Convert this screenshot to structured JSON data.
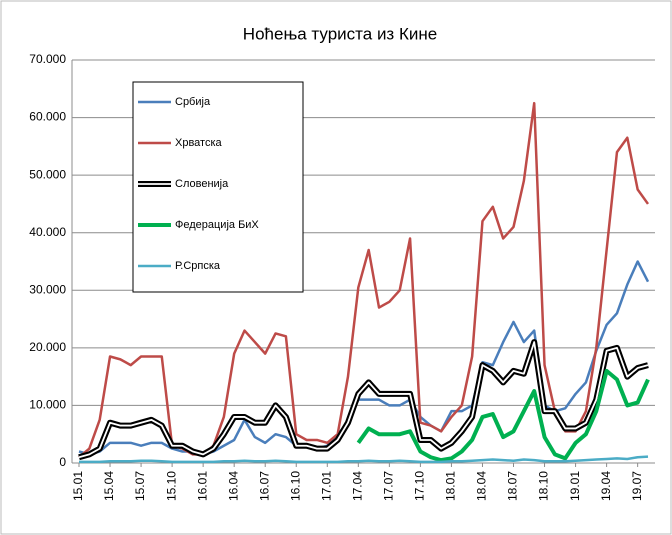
{
  "chart_data": {
    "type": "line",
    "title": "Ноћења туриста из Кине",
    "categories": [
      "15.01",
      null,
      null,
      "15.04",
      null,
      null,
      "15.07",
      null,
      null,
      "15.10",
      null,
      null,
      "16.01",
      null,
      null,
      "16.04",
      null,
      null,
      "16.07",
      null,
      null,
      "16.10",
      null,
      null,
      "17.01",
      null,
      null,
      "17.04",
      null,
      null,
      "17.07",
      null,
      null,
      "17.10",
      null,
      null,
      "18.01",
      null,
      null,
      "18.04",
      null,
      null,
      "18.07",
      null,
      null,
      "18.10",
      null,
      null,
      "19.01",
      null,
      null,
      "19.04",
      null,
      null,
      "19.07",
      null
    ],
    "series": [
      {
        "name": "Србија",
        "color": "#4a7ebb",
        "style": "single",
        "values": [
          2000,
          1500,
          2000,
          3500,
          3500,
          3500,
          3000,
          3500,
          3500,
          2500,
          2000,
          2000,
          1500,
          2000,
          3000,
          4000,
          7500,
          4500,
          3500,
          5000,
          4500,
          3000,
          3000,
          2500,
          3000,
          5000,
          7000,
          11000,
          11000,
          11000,
          10000,
          10000,
          11000,
          8000,
          6500,
          5500,
          9000,
          9000,
          10000,
          17500,
          17000,
          21000,
          24500,
          21000,
          23000,
          10000,
          9000,
          9500,
          12000,
          14000,
          19500,
          24000,
          26000,
          31000,
          35000,
          31500
        ]
      },
      {
        "name": "Хрватска",
        "color": "#be4b48",
        "style": "single",
        "values": [
          1000,
          2500,
          7500,
          18500,
          18000,
          17000,
          18500,
          18500,
          18500,
          3000,
          2500,
          1500,
          1500,
          3000,
          8000,
          19000,
          23000,
          21000,
          19000,
          22500,
          22000,
          5000,
          4000,
          4000,
          3500,
          5000,
          15000,
          30500,
          37000,
          27000,
          28000,
          30000,
          39000,
          7000,
          6500,
          5500,
          8000,
          10000,
          18500,
          42000,
          44500,
          39000,
          41000,
          49000,
          62500,
          17000,
          9000,
          5500,
          5500,
          9000,
          20000,
          37000,
          54000,
          56500,
          47500,
          45000
        ]
      },
      {
        "name": "Словенија",
        "color": "#000000",
        "style": "double",
        "values": [
          1000,
          1500,
          2500,
          7000,
          6500,
          6500,
          7000,
          7500,
          6500,
          3000,
          3000,
          2000,
          1500,
          2500,
          5000,
          8000,
          8000,
          7000,
          7000,
          10000,
          8000,
          3000,
          3000,
          2500,
          2500,
          4000,
          7000,
          12000,
          14000,
          12000,
          12000,
          12000,
          12000,
          4000,
          4000,
          2500,
          3500,
          5500,
          8000,
          17000,
          16000,
          14000,
          16000,
          15500,
          21000,
          9000,
          9000,
          6000,
          6000,
          7000,
          11000,
          19500,
          20000,
          15000,
          16500,
          17000
        ]
      },
      {
        "name": "Федерација БиХ",
        "color": "#00b050",
        "style": "thick",
        "values": [
          null,
          null,
          null,
          null,
          null,
          null,
          null,
          null,
          null,
          null,
          null,
          null,
          null,
          null,
          null,
          null,
          null,
          null,
          null,
          null,
          null,
          null,
          null,
          null,
          null,
          null,
          null,
          3500,
          6000,
          5000,
          5000,
          5000,
          5500,
          2000,
          1000,
          500,
          800,
          2000,
          4000,
          8000,
          8500,
          4500,
          5500,
          9000,
          12500,
          4500,
          1500,
          800,
          3500,
          5000,
          9000,
          16000,
          14500,
          10000,
          10500,
          14500
        ]
      },
      {
        "name": "Р.Српска",
        "color": "#4bacc6",
        "style": "single",
        "values": [
          200,
          200,
          200,
          300,
          300,
          300,
          400,
          400,
          300,
          200,
          200,
          200,
          200,
          200,
          300,
          300,
          400,
          300,
          300,
          400,
          300,
          200,
          200,
          200,
          200,
          200,
          300,
          300,
          400,
          300,
          300,
          400,
          300,
          200,
          200,
          200,
          300,
          300,
          400,
          500,
          600,
          500,
          400,
          600,
          500,
          300,
          300,
          300,
          400,
          500,
          600,
          700,
          800,
          700,
          1000,
          1100
        ]
      }
    ],
    "ylim": [
      0,
      70000
    ],
    "yticks": [
      0,
      {
        "value": 10000,
        "label": "10.000"
      },
      {
        "value": 20000,
        "label": "20.000"
      },
      {
        "value": 30000,
        "label": "30.000"
      },
      {
        "value": 40000,
        "label": "40.000"
      },
      {
        "value": 50000,
        "label": "50.000"
      },
      {
        "value": 60000,
        "label": "60.000"
      },
      {
        "value": 70000,
        "label": "70.000"
      }
    ],
    "grid": true,
    "legend": "upper left"
  }
}
